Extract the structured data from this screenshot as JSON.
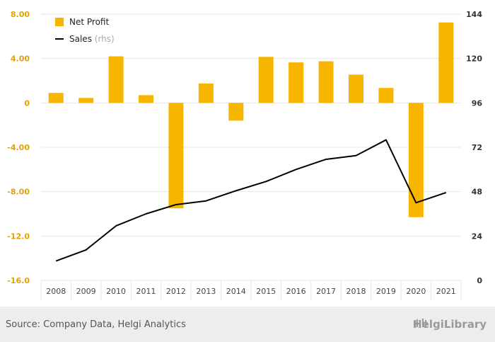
{
  "chart_data": {
    "type": "bar",
    "categories": [
      "2008",
      "2009",
      "2010",
      "2011",
      "2012",
      "2013",
      "2014",
      "2015",
      "2016",
      "2017",
      "2018",
      "2019",
      "2020",
      "2021"
    ],
    "series": [
      {
        "name": "Net Profit",
        "type": "bar",
        "axis": "left",
        "color": "#F7B500",
        "values": [
          0.9,
          0.45,
          4.2,
          0.7,
          -9.5,
          1.75,
          -1.6,
          4.15,
          3.65,
          3.75,
          2.55,
          1.35,
          -10.3,
          7.25
        ]
      },
      {
        "name": "Sales",
        "name_suffix": "(rhs)",
        "type": "line",
        "axis": "right",
        "color": "#000000",
        "values": [
          10.5,
          16.5,
          29.5,
          36,
          41,
          43,
          48.5,
          53.5,
          60,
          65.5,
          67.5,
          76,
          42,
          47.5
        ]
      }
    ],
    "y_left": {
      "min": -16,
      "max": 8,
      "ticks": [
        "8.00",
        "4.00",
        "0",
        "-4.00",
        "-8.00",
        "-12.0",
        "-16.0"
      ],
      "tick_values": [
        8,
        4,
        0,
        -4,
        -8,
        -12,
        -16
      ],
      "color": "#E3A100"
    },
    "y_right": {
      "min": 0,
      "max": 144,
      "ticks": [
        "144",
        "120",
        "96",
        "72",
        "48",
        "24",
        "0"
      ],
      "tick_values": [
        144,
        120,
        96,
        72,
        48,
        24,
        0
      ]
    },
    "grid": true,
    "legend": "top-left"
  },
  "footer": {
    "source": "Source: Company Data, Helgi Analytics",
    "brand": "HelgiLibrary"
  }
}
